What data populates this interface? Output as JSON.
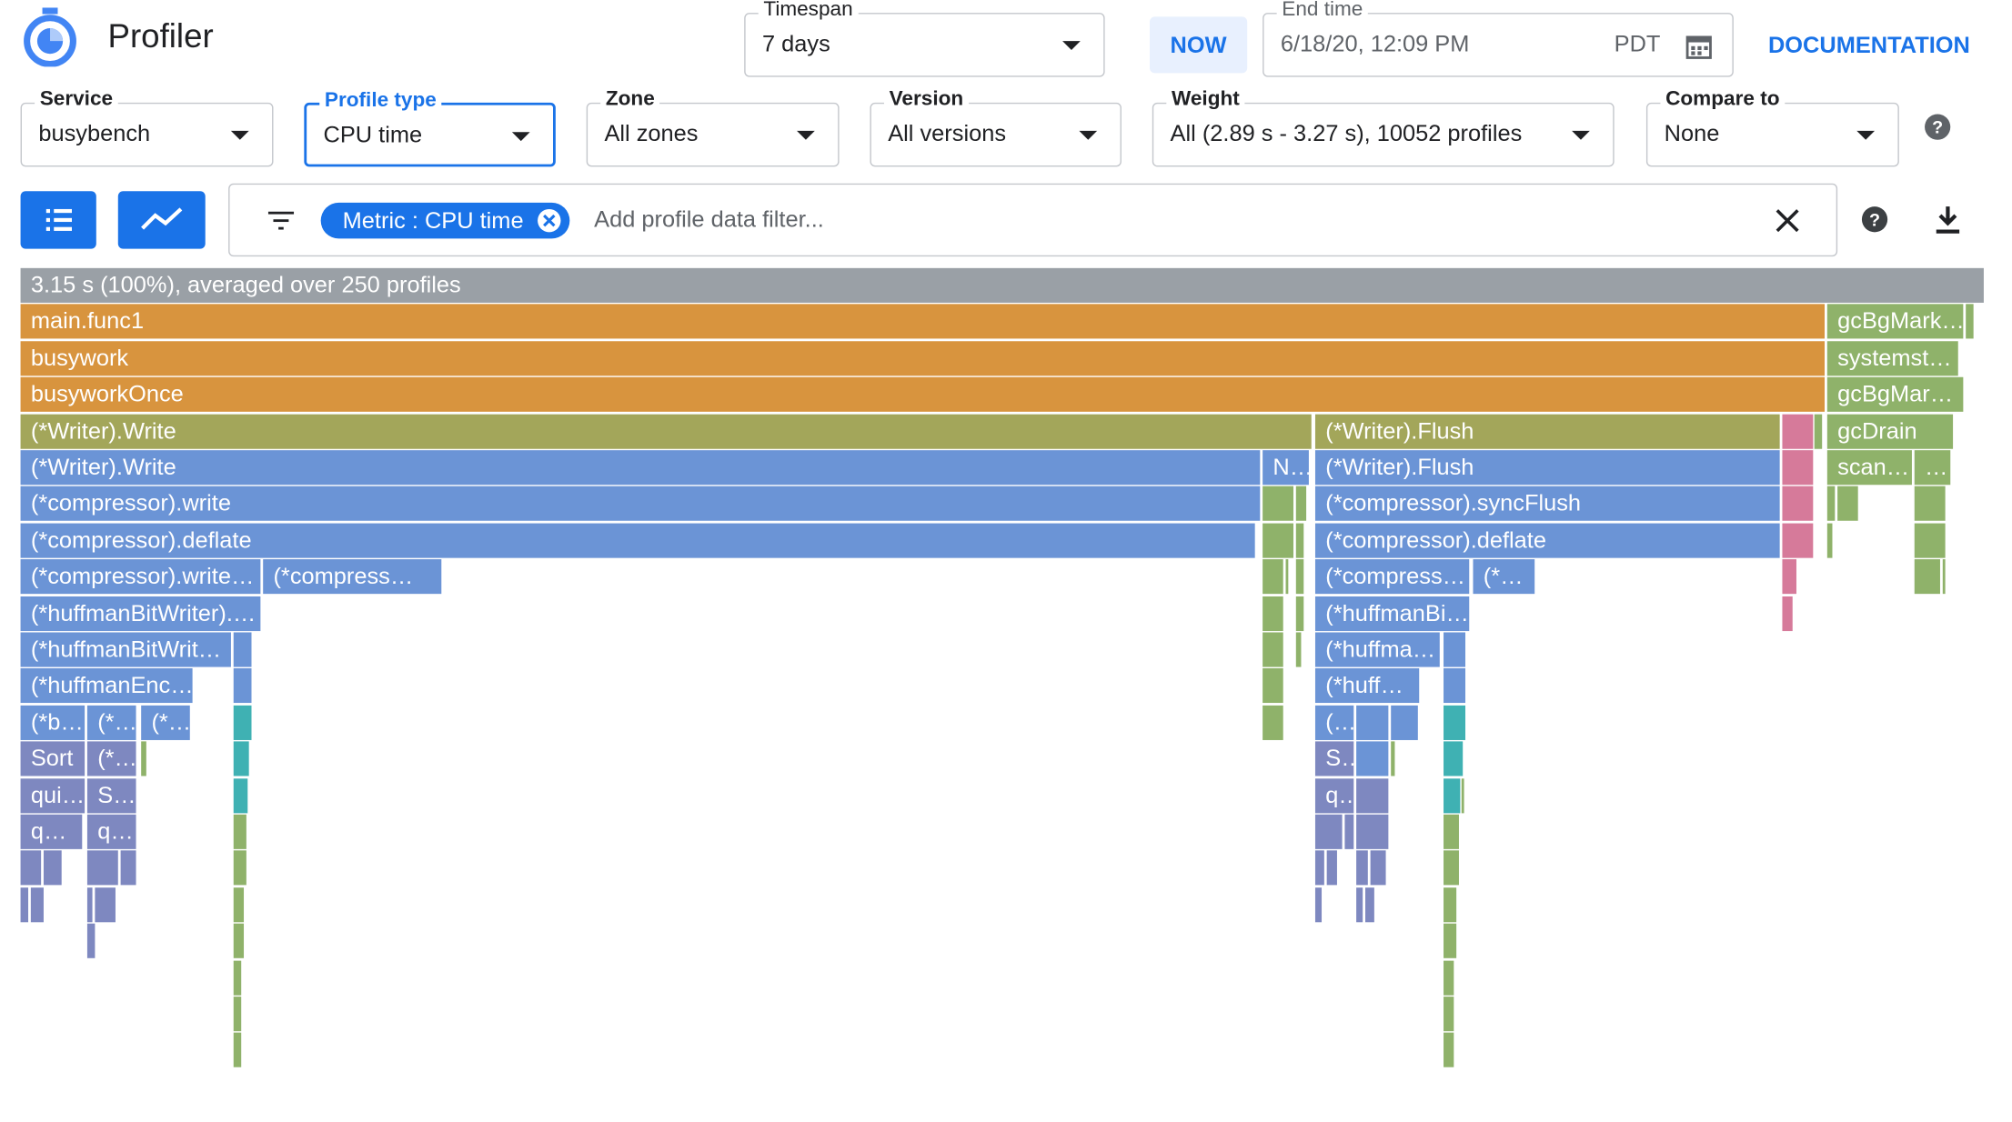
{
  "header": {
    "title": "Profiler",
    "now": "NOW",
    "documentation": "DOCUMENTATION"
  },
  "timespan": {
    "label": "Timespan",
    "value": "7 days"
  },
  "end_time": {
    "label": "End time",
    "value": "6/18/20, 12:09 PM",
    "timezone": "PDT"
  },
  "fields": [
    {
      "label": "Service",
      "value": "busybench"
    },
    {
      "label": "Profile type",
      "value": "CPU time"
    },
    {
      "label": "Zone",
      "value": "All zones"
    },
    {
      "label": "Version",
      "value": "All versions"
    },
    {
      "label": "Weight",
      "value": "All (2.89 s - 3.27 s), 10052 profiles"
    },
    {
      "label": "Compare to",
      "value": "None"
    }
  ],
  "filter": {
    "chip": "Metric : CPU time",
    "placeholder": "Add profile data filter..."
  },
  "flame": {
    "frames": [
      "3.15 s (100%), averaged over 250 profiles",
      "main.func1",
      "gcBgMark…",
      "busywork",
      "systemst…",
      "busyworkOnce",
      "gcBgMar…",
      "(*Writer).Write",
      "(*Writer).Flush",
      "gcDrain",
      "(*Writer).Write",
      "N…",
      "(*Writer).Flush",
      "scan…",
      "…",
      "(*compressor).write",
      "(*compressor).syncFlush",
      "(*compressor).deflate",
      "(*compressor).deflate",
      "(*compressor).write…",
      "(*compress…",
      "(*compress…",
      "(*…",
      "(*huffmanBitWriter).…",
      "(*huffmanBi…",
      "(*huffmanBitWrit…",
      "(*huffma…",
      "(*huffmanEnc…",
      "(*huff…",
      "(*b…",
      "(*…",
      "(*…",
      "(…",
      "Sort",
      "(*…",
      "S…",
      "qui…",
      "S…",
      "q…",
      "q…",
      "q…"
    ]
  }
}
